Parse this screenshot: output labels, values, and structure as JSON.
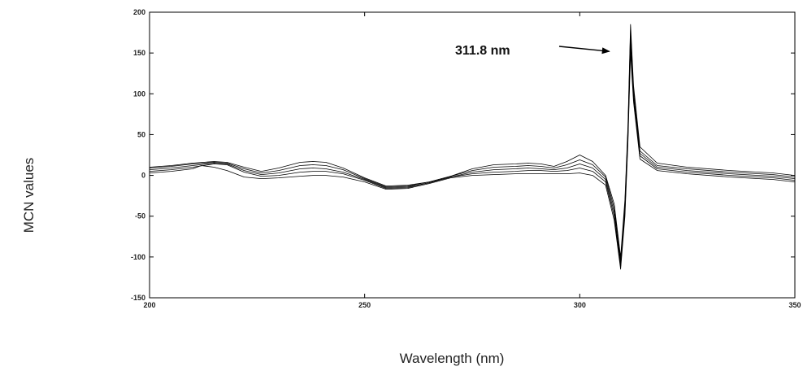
{
  "chart_data": {
    "type": "line",
    "title": "",
    "xlabel": "Wavelength (nm)",
    "ylabel": "MCN values",
    "xlim": [
      200,
      350
    ],
    "ylim": [
      -150,
      200
    ],
    "xticks": [
      200,
      250,
      300,
      350
    ],
    "yticks": [
      -150,
      -100,
      -50,
      0,
      50,
      100,
      150,
      200
    ],
    "grid": false,
    "legend": "none",
    "line_color": "#000000",
    "annotations": [
      {
        "text": "311.8 nm",
        "arrow_to": [
          311.8,
          150
        ]
      }
    ],
    "series": [
      {
        "values": [
          [
            200,
            10
          ],
          [
            205,
            12
          ],
          [
            210,
            15
          ],
          [
            215,
            17
          ],
          [
            218,
            16
          ],
          [
            222,
            10
          ],
          [
            226,
            5
          ],
          [
            230,
            9
          ],
          [
            235,
            16
          ],
          [
            238,
            17
          ],
          [
            241,
            16
          ],
          [
            245,
            9
          ],
          [
            250,
            -3
          ],
          [
            255,
            -13
          ],
          [
            260,
            -12
          ],
          [
            265,
            -8
          ],
          [
            270,
            -1
          ],
          [
            275,
            8
          ],
          [
            280,
            13
          ],
          [
            285,
            14
          ],
          [
            288,
            15
          ],
          [
            291,
            14
          ],
          [
            294,
            11
          ],
          [
            297,
            17
          ],
          [
            300,
            25
          ],
          [
            303,
            17
          ],
          [
            306,
            0
          ],
          [
            308,
            -35
          ],
          [
            309.5,
            -100
          ],
          [
            310.5,
            -30
          ],
          [
            311.2,
            60
          ],
          [
            311.8,
            185
          ],
          [
            312.5,
            110
          ],
          [
            314,
            35
          ],
          [
            318,
            15
          ],
          [
            325,
            10
          ],
          [
            335,
            6
          ],
          [
            345,
            3
          ],
          [
            350,
            0
          ]
        ]
      },
      {
        "values": [
          [
            200,
            9
          ],
          [
            205,
            11
          ],
          [
            210,
            14
          ],
          [
            215,
            16
          ],
          [
            218,
            15
          ],
          [
            222,
            8
          ],
          [
            226,
            3
          ],
          [
            230,
            6
          ],
          [
            235,
            12
          ],
          [
            238,
            13
          ],
          [
            241,
            12
          ],
          [
            245,
            7
          ],
          [
            250,
            -4
          ],
          [
            255,
            -14
          ],
          [
            260,
            -13
          ],
          [
            265,
            -8
          ],
          [
            270,
            -1
          ],
          [
            275,
            6
          ],
          [
            280,
            10
          ],
          [
            285,
            11
          ],
          [
            288,
            12
          ],
          [
            291,
            11
          ],
          [
            294,
            9
          ],
          [
            297,
            13
          ],
          [
            300,
            19
          ],
          [
            303,
            13
          ],
          [
            306,
            -2
          ],
          [
            308,
            -40
          ],
          [
            309.5,
            -104
          ],
          [
            310.5,
            -35
          ],
          [
            311.2,
            55
          ],
          [
            311.8,
            178
          ],
          [
            312.5,
            105
          ],
          [
            314,
            30
          ],
          [
            318,
            12
          ],
          [
            325,
            8
          ],
          [
            335,
            4
          ],
          [
            345,
            1
          ],
          [
            350,
            -2
          ]
        ]
      },
      {
        "values": [
          [
            200,
            7
          ],
          [
            205,
            9
          ],
          [
            210,
            12
          ],
          [
            215,
            15
          ],
          [
            218,
            14
          ],
          [
            222,
            6
          ],
          [
            226,
            1
          ],
          [
            230,
            3
          ],
          [
            235,
            8
          ],
          [
            238,
            9
          ],
          [
            241,
            8
          ],
          [
            245,
            4
          ],
          [
            250,
            -5
          ],
          [
            255,
            -15
          ],
          [
            260,
            -14
          ],
          [
            265,
            -9
          ],
          [
            270,
            -2
          ],
          [
            275,
            4
          ],
          [
            280,
            7
          ],
          [
            285,
            8
          ],
          [
            288,
            9
          ],
          [
            291,
            8
          ],
          [
            294,
            7
          ],
          [
            297,
            9
          ],
          [
            300,
            14
          ],
          [
            303,
            9
          ],
          [
            306,
            -5
          ],
          [
            308,
            -45
          ],
          [
            309.5,
            -108
          ],
          [
            310.5,
            -40
          ],
          [
            311.2,
            50
          ],
          [
            311.8,
            170
          ],
          [
            312.5,
            100
          ],
          [
            314,
            27
          ],
          [
            318,
            10
          ],
          [
            325,
            6
          ],
          [
            335,
            2
          ],
          [
            345,
            -1
          ],
          [
            350,
            -4
          ]
        ]
      },
      {
        "values": [
          [
            200,
            5
          ],
          [
            205,
            7
          ],
          [
            210,
            10
          ],
          [
            215,
            14
          ],
          [
            218,
            13
          ],
          [
            222,
            4
          ],
          [
            226,
            -1
          ],
          [
            230,
            0
          ],
          [
            235,
            4
          ],
          [
            238,
            5
          ],
          [
            241,
            5
          ],
          [
            245,
            2
          ],
          [
            250,
            -6
          ],
          [
            255,
            -16
          ],
          [
            260,
            -15
          ],
          [
            265,
            -9
          ],
          [
            270,
            -2
          ],
          [
            275,
            2
          ],
          [
            280,
            4
          ],
          [
            285,
            5
          ],
          [
            288,
            6
          ],
          [
            291,
            6
          ],
          [
            294,
            5
          ],
          [
            297,
            6
          ],
          [
            300,
            9
          ],
          [
            303,
            5
          ],
          [
            306,
            -8
          ],
          [
            308,
            -50
          ],
          [
            309.5,
            -112
          ],
          [
            310.5,
            -45
          ],
          [
            311.2,
            45
          ],
          [
            311.8,
            160
          ],
          [
            312.5,
            95
          ],
          [
            314,
            24
          ],
          [
            318,
            8
          ],
          [
            325,
            4
          ],
          [
            335,
            0
          ],
          [
            345,
            -3
          ],
          [
            350,
            -6
          ]
        ]
      },
      {
        "values": [
          [
            200,
            3
          ],
          [
            205,
            5
          ],
          [
            210,
            8
          ],
          [
            212,
            12
          ],
          [
            215,
            10
          ],
          [
            218,
            6
          ],
          [
            222,
            -2
          ],
          [
            226,
            -4
          ],
          [
            230,
            -3
          ],
          [
            235,
            -1
          ],
          [
            238,
            0
          ],
          [
            241,
            0
          ],
          [
            245,
            -2
          ],
          [
            250,
            -8
          ],
          [
            255,
            -17
          ],
          [
            260,
            -16
          ],
          [
            265,
            -10
          ],
          [
            270,
            -3
          ],
          [
            275,
            0
          ],
          [
            280,
            1
          ],
          [
            285,
            2
          ],
          [
            288,
            2
          ],
          [
            291,
            2
          ],
          [
            294,
            2
          ],
          [
            297,
            2
          ],
          [
            300,
            3
          ],
          [
            303,
            0
          ],
          [
            306,
            -12
          ],
          [
            308,
            -55
          ],
          [
            309.5,
            -115
          ],
          [
            310.5,
            -50
          ],
          [
            311.2,
            40
          ],
          [
            311.8,
            150
          ],
          [
            312.5,
            90
          ],
          [
            314,
            20
          ],
          [
            318,
            6
          ],
          [
            325,
            2
          ],
          [
            335,
            -2
          ],
          [
            345,
            -5
          ],
          [
            350,
            -8
          ]
        ]
      }
    ]
  }
}
